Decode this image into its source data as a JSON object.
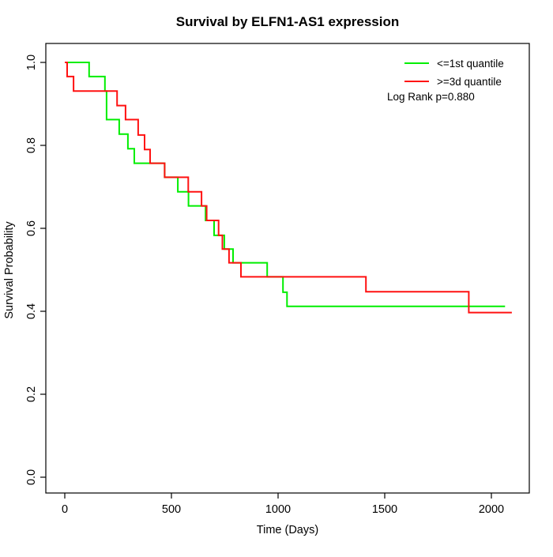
{
  "title": "Survival by ELFN1-AS1 expression",
  "x_axis": {
    "label": "Time (Days)",
    "tick_labels": [
      "0",
      "500",
      "1000",
      "1500",
      "2000"
    ],
    "tick_values": [
      0,
      500,
      1000,
      1500,
      2000
    ]
  },
  "y_axis": {
    "label": "Survival Probability",
    "tick_labels": [
      "0.0",
      "0.2",
      "0.4",
      "0.6",
      "0.8",
      "1.0"
    ],
    "tick_values": [
      0,
      0.2,
      0.4,
      0.6,
      0.8,
      1.0
    ]
  },
  "legend": {
    "entries": [
      {
        "label": "<=1st quantile",
        "color": "#00ee00"
      },
      {
        "label": ">=3d quantile",
        "color": "#ff1111"
      }
    ],
    "note": "Log Rank p=0.880"
  },
  "chart_data": {
    "type": "line",
    "subtype": "kaplan-meier-step",
    "title": "Survival by ELFN1-AS1 expression",
    "xlabel": "Time (Days)",
    "ylabel": "Survival Probability",
    "xlim": [
      0,
      2100
    ],
    "ylim": [
      0,
      1
    ],
    "grid": false,
    "legend_position": "top-right",
    "annotation": "Log Rank p=0.880",
    "series": [
      {
        "name": "<=1st quantile",
        "color": "#00ee00",
        "points": [
          [
            0,
            1.0
          ],
          [
            114,
            0.966
          ],
          [
            188,
            0.931
          ],
          [
            196,
            0.862
          ],
          [
            255,
            0.827
          ],
          [
            296,
            0.792
          ],
          [
            326,
            0.757
          ],
          [
            468,
            0.723
          ],
          [
            530,
            0.688
          ],
          [
            580,
            0.654
          ],
          [
            660,
            0.619
          ],
          [
            700,
            0.583
          ],
          [
            748,
            0.55
          ],
          [
            789,
            0.517
          ],
          [
            949,
            0.483
          ],
          [
            1023,
            0.446
          ],
          [
            1042,
            0.412
          ],
          [
            2064,
            0.412
          ]
        ]
      },
      {
        "name": ">=3d quantile",
        "color": "#ff1111",
        "points": [
          [
            0,
            1.0
          ],
          [
            11,
            0.966
          ],
          [
            41,
            0.931
          ],
          [
            245,
            0.896
          ],
          [
            285,
            0.862
          ],
          [
            344,
            0.825
          ],
          [
            374,
            0.79
          ],
          [
            400,
            0.757
          ],
          [
            468,
            0.723
          ],
          [
            579,
            0.688
          ],
          [
            641,
            0.654
          ],
          [
            665,
            0.619
          ],
          [
            721,
            0.583
          ],
          [
            739,
            0.55
          ],
          [
            770,
            0.517
          ],
          [
            826,
            0.483
          ],
          [
            1412,
            0.447
          ],
          [
            1894,
            0.397
          ],
          [
            2096,
            0.397
          ]
        ]
      }
    ]
  }
}
